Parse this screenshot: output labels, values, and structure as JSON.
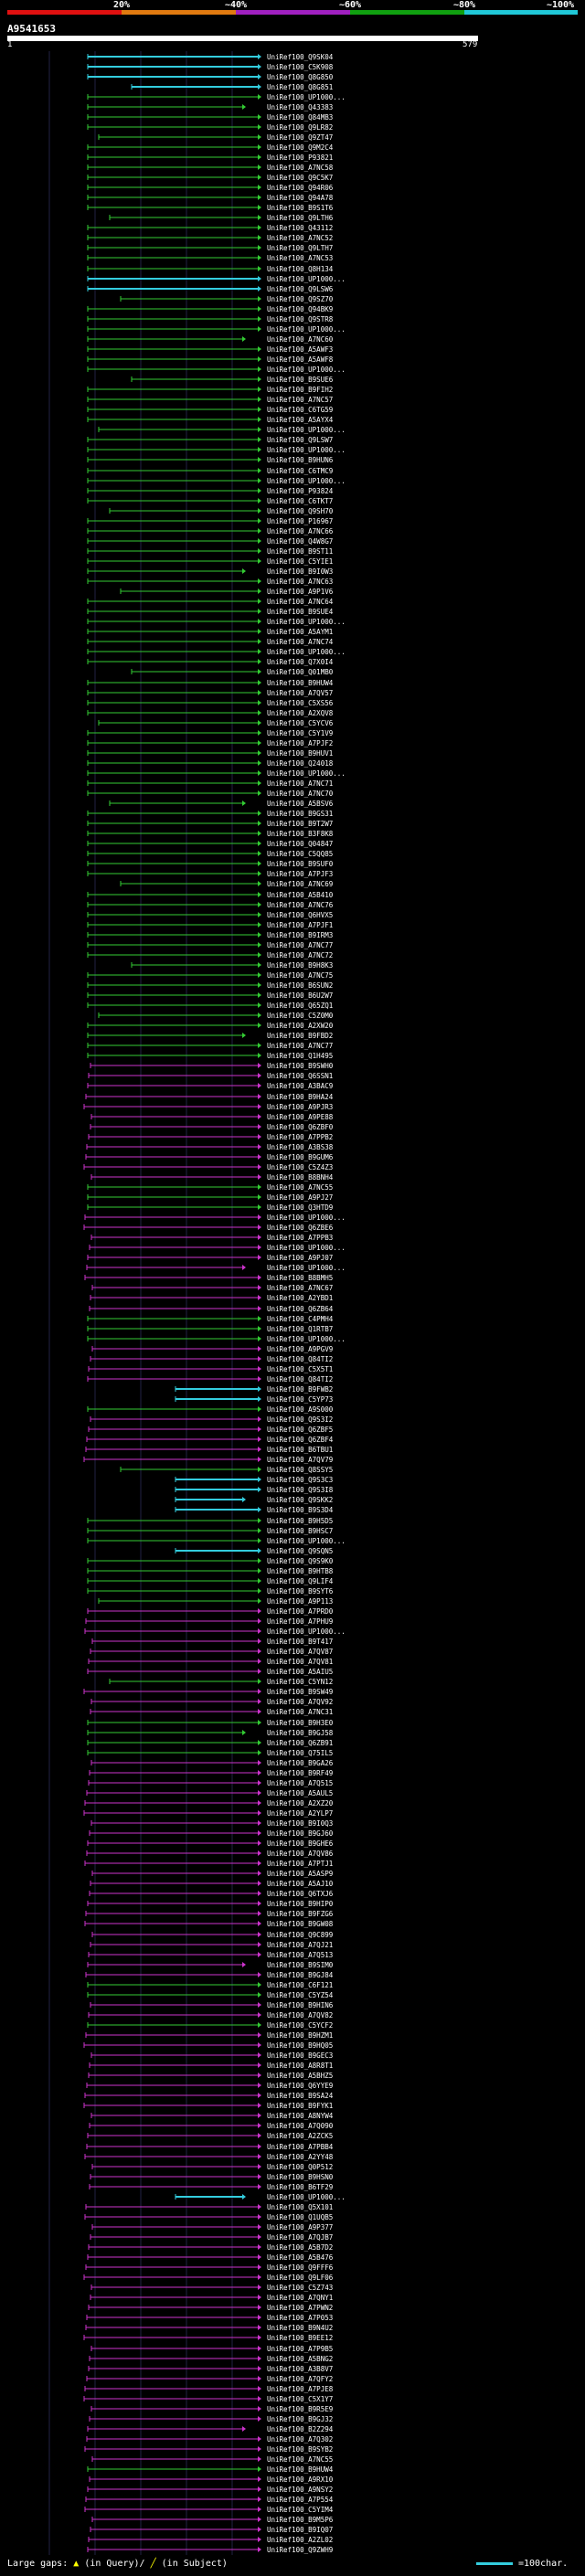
{
  "identity_scale": {
    "labels": [
      "20%",
      "~40%",
      "~60%",
      "~80%",
      "~100%"
    ],
    "colors": [
      "#e01010",
      "#e07a10",
      "#a020c0",
      "#10a010",
      "#20c8d8"
    ]
  },
  "query": {
    "accession": "A9541653",
    "start_label": "1",
    "end_label": "579"
  },
  "hit_colors": {
    "green": "#33cc33",
    "magenta": "#cc33cc",
    "cyan": "#33ccdd"
  },
  "hits": [
    {
      "label": "UniRef100_Q9SK04",
      "color": "cyan"
    },
    {
      "label": "UniRef100_C5K908",
      "color": "cyan"
    },
    {
      "label": "UniRef100_Q8G850",
      "color": "cyan"
    },
    {
      "label": "UniRef100_Q8G851",
      "color": "cyan"
    },
    {
      "label": "UniRef100_UP1000...",
      "color": "green"
    },
    {
      "label": "UniRef100_Q43383",
      "color": "green"
    },
    {
      "label": "UniRef100_Q84MB3",
      "color": "green"
    },
    {
      "label": "UniRef100_Q9LR82",
      "color": "green"
    },
    {
      "label": "UniRef100_Q9ZT47",
      "color": "green"
    },
    {
      "label": "UniRef100_Q9M2C4",
      "color": "green"
    },
    {
      "label": "UniRef100_P93821",
      "color": "green"
    },
    {
      "label": "UniRef100_A7NC58",
      "color": "green"
    },
    {
      "label": "UniRef100_Q9C5K7",
      "color": "green"
    },
    {
      "label": "UniRef100_Q94R06",
      "color": "green"
    },
    {
      "label": "UniRef100_Q94A78",
      "color": "green"
    },
    {
      "label": "UniRef100_B9S1T6",
      "color": "green"
    },
    {
      "label": "UniRef100_Q9LTH6",
      "color": "green"
    },
    {
      "label": "UniRef100_Q43112",
      "color": "green"
    },
    {
      "label": "UniRef100_A7NC52",
      "color": "green"
    },
    {
      "label": "UniRef100_Q9LTH7",
      "color": "green"
    },
    {
      "label": "UniRef100_A7NC53",
      "color": "green"
    },
    {
      "label": "UniRef100_Q8H134",
      "color": "green"
    },
    {
      "label": "UniRef100_UP1000...",
      "color": "cyan"
    },
    {
      "label": "UniRef100_Q9LSW6",
      "color": "cyan"
    },
    {
      "label": "UniRef100_Q9SZ70",
      "color": "green"
    },
    {
      "label": "UniRef100_Q94BK9",
      "color": "green"
    },
    {
      "label": "UniRef100_Q9STR8",
      "color": "green"
    },
    {
      "label": "UniRef100_UP1000...",
      "color": "green"
    },
    {
      "label": "UniRef100_A7NC60",
      "color": "green"
    },
    {
      "label": "UniRef100_A5AWF3",
      "color": "green"
    },
    {
      "label": "UniRef100_A5AWF8",
      "color": "green"
    },
    {
      "label": "UniRef100_UP1000...",
      "color": "green"
    },
    {
      "label": "UniRef100_B9SUE6",
      "color": "green"
    },
    {
      "label": "UniRef100_B9FIH2",
      "color": "green"
    },
    {
      "label": "UniRef100_A7NC57",
      "color": "green"
    },
    {
      "label": "UniRef100_C6TG59",
      "color": "green"
    },
    {
      "label": "UniRef100_A5AYX4",
      "color": "green"
    },
    {
      "label": "UniRef100_UP1000...",
      "color": "green"
    },
    {
      "label": "UniRef100_Q9LSW7",
      "color": "green"
    },
    {
      "label": "UniRef100_UP1000...",
      "color": "green"
    },
    {
      "label": "UniRef100_B9HUN6",
      "color": "green"
    },
    {
      "label": "UniRef100_C6TMC9",
      "color": "green"
    },
    {
      "label": "UniRef100_UP1000...",
      "color": "green"
    },
    {
      "label": "UniRef100_P93824",
      "color": "green"
    },
    {
      "label": "UniRef100_C6TKT7",
      "color": "green"
    },
    {
      "label": "UniRef100_Q9SH70",
      "color": "green"
    },
    {
      "label": "UniRef100_P16967",
      "color": "green"
    },
    {
      "label": "UniRef100_A7NC66",
      "color": "green"
    },
    {
      "label": "UniRef100_Q4W8G7",
      "color": "green"
    },
    {
      "label": "UniRef100_B9ST11",
      "color": "green"
    },
    {
      "label": "UniRef100_C5YIE1",
      "color": "green"
    },
    {
      "label": "UniRef100_B9I0W3",
      "color": "green"
    },
    {
      "label": "UniRef100_A7NC63",
      "color": "green"
    },
    {
      "label": "UniRef100_A9P1V6",
      "color": "green"
    },
    {
      "label": "UniRef100_A7NC64",
      "color": "green"
    },
    {
      "label": "UniRef100_B9SUE4",
      "color": "green"
    },
    {
      "label": "UniRef100_UP1000...",
      "color": "green"
    },
    {
      "label": "UniRef100_A5AYM1",
      "color": "green"
    },
    {
      "label": "UniRef100_A7NC74",
      "color": "green"
    },
    {
      "label": "UniRef100_UP1000...",
      "color": "green"
    },
    {
      "label": "UniRef100_Q7X0I4",
      "color": "green"
    },
    {
      "label": "UniRef100_Q01MB0",
      "color": "green"
    },
    {
      "label": "UniRef100_B9HUW4",
      "color": "green"
    },
    {
      "label": "UniRef100_A7QV57",
      "color": "green"
    },
    {
      "label": "UniRef100_C5XS56",
      "color": "green"
    },
    {
      "label": "UniRef100_A2XQV8",
      "color": "green"
    },
    {
      "label": "UniRef100_C5YCV6",
      "color": "green"
    },
    {
      "label": "UniRef100_C5Y1V9",
      "color": "green"
    },
    {
      "label": "UniRef100_A7PJF2",
      "color": "green"
    },
    {
      "label": "UniRef100_B9HUV1",
      "color": "green"
    },
    {
      "label": "UniRef100_Q24018",
      "color": "green"
    },
    {
      "label": "UniRef100_UP1000...",
      "color": "green"
    },
    {
      "label": "UniRef100_A7NC71",
      "color": "green"
    },
    {
      "label": "UniRef100_A7NC70",
      "color": "green"
    },
    {
      "label": "UniRef100_A5BSV6",
      "color": "green"
    },
    {
      "label": "UniRef100_B9GS31",
      "color": "green"
    },
    {
      "label": "UniRef100_B9T2W7",
      "color": "green"
    },
    {
      "label": "UniRef100_B3F8K8",
      "color": "green"
    },
    {
      "label": "UniRef100_Q04847",
      "color": "green"
    },
    {
      "label": "UniRef100_C5QQ85",
      "color": "green"
    },
    {
      "label": "UniRef100_B9SUF0",
      "color": "green"
    },
    {
      "label": "UniRef100_A7PJF3",
      "color": "green"
    },
    {
      "label": "UniRef100_A7NC69",
      "color": "green"
    },
    {
      "label": "UniRef100_A5B410",
      "color": "green"
    },
    {
      "label": "UniRef100_A7NC76",
      "color": "green"
    },
    {
      "label": "UniRef100_Q6HVX5",
      "color": "green"
    },
    {
      "label": "UniRef100_A7PJF1",
      "color": "green"
    },
    {
      "label": "UniRef100_B9IRM3",
      "color": "green"
    },
    {
      "label": "UniRef100_A7NC77",
      "color": "green"
    },
    {
      "label": "UniRef100_A7NC72",
      "color": "green"
    },
    {
      "label": "UniRef100_B9H8K3",
      "color": "green"
    },
    {
      "label": "UniRef100_A7NC75",
      "color": "green"
    },
    {
      "label": "UniRef100_B6SUN2",
      "color": "green"
    },
    {
      "label": "UniRef100_B6U2W7",
      "color": "green"
    },
    {
      "label": "UniRef100_Q65ZQ1",
      "color": "green"
    },
    {
      "label": "UniRef100_C5Z0M0",
      "color": "green"
    },
    {
      "label": "UniRef100_A2XW20",
      "color": "green"
    },
    {
      "label": "UniRef100_B9FBD2",
      "color": "green"
    },
    {
      "label": "UniRef100_A7NC77",
      "color": "green"
    },
    {
      "label": "UniRef100_Q1H495",
      "color": "green"
    },
    {
      "label": "UniRef100_B9SWH0",
      "color": "magenta"
    },
    {
      "label": "UniRef100_Q6SSN1",
      "color": "magenta"
    },
    {
      "label": "UniRef100_A3BAC9",
      "color": "magenta"
    },
    {
      "label": "UniRef100_B9HA24",
      "color": "magenta"
    },
    {
      "label": "UniRef100_A9PJR3",
      "color": "magenta"
    },
    {
      "label": "UniRef100_A9PE88",
      "color": "magenta"
    },
    {
      "label": "UniRef100_Q6ZBF0",
      "color": "magenta"
    },
    {
      "label": "UniRef100_A7PPB2",
      "color": "magenta"
    },
    {
      "label": "UniRef100_A3BS38",
      "color": "magenta"
    },
    {
      "label": "UniRef100_B9GUM6",
      "color": "magenta"
    },
    {
      "label": "UniRef100_C5Z4Z3",
      "color": "magenta"
    },
    {
      "label": "UniRef100_B8BNH4",
      "color": "magenta"
    },
    {
      "label": "UniRef100_A7NC55",
      "color": "green"
    },
    {
      "label": "UniRef100_A9PJ27",
      "color": "green"
    },
    {
      "label": "UniRef100_Q3HTD9",
      "color": "green"
    },
    {
      "label": "UniRef100_UP1000...",
      "color": "magenta"
    },
    {
      "label": "UniRef100_Q6ZBE6",
      "color": "magenta"
    },
    {
      "label": "UniRef100_A7PPB3",
      "color": "magenta"
    },
    {
      "label": "UniRef100_UP1000...",
      "color": "magenta"
    },
    {
      "label": "UniRef100_A9PJ07",
      "color": "magenta"
    },
    {
      "label": "UniRef100_UP1000...",
      "color": "magenta"
    },
    {
      "label": "UniRef100_B8BMH5",
      "color": "magenta"
    },
    {
      "label": "UniRef100_A7NC67",
      "color": "magenta"
    },
    {
      "label": "UniRef100_A2YBD1",
      "color": "magenta"
    },
    {
      "label": "UniRef100_Q6ZB64",
      "color": "magenta"
    },
    {
      "label": "UniRef100_C4PMH4",
      "color": "green"
    },
    {
      "label": "UniRef100_Q1RTB7",
      "color": "green"
    },
    {
      "label": "UniRef100_UP1000...",
      "color": "green"
    },
    {
      "label": "UniRef100_A9PGV9",
      "color": "magenta"
    },
    {
      "label": "UniRef100_Q84TI2",
      "color": "magenta"
    },
    {
      "label": "UniRef100_C5X5T1",
      "color": "magenta"
    },
    {
      "label": "UniRef100_Q84TI2",
      "color": "magenta"
    },
    {
      "label": "UniRef100_B9FWB2",
      "color": "cyan"
    },
    {
      "label": "UniRef100_C5YP73",
      "color": "cyan"
    },
    {
      "label": "UniRef100_A9S000",
      "color": "green"
    },
    {
      "label": "UniRef100_Q9S3I2",
      "color": "magenta"
    },
    {
      "label": "UniRef100_Q6ZBF5",
      "color": "magenta"
    },
    {
      "label": "UniRef100_Q6ZBF4",
      "color": "magenta"
    },
    {
      "label": "UniRef100_B6TBU1",
      "color": "magenta"
    },
    {
      "label": "UniRef100_A7QV79",
      "color": "magenta"
    },
    {
      "label": "UniRef100_Q8SSY5",
      "color": "green"
    },
    {
      "label": "UniRef100_Q9S3C3",
      "color": "cyan"
    },
    {
      "label": "UniRef100_Q9S3I8",
      "color": "cyan"
    },
    {
      "label": "UniRef100_Q9SKK2",
      "color": "cyan"
    },
    {
      "label": "UniRef100_B9S3D4",
      "color": "cyan"
    },
    {
      "label": "UniRef100_B9H5D5",
      "color": "green"
    },
    {
      "label": "UniRef100_B9HSC7",
      "color": "green"
    },
    {
      "label": "UniRef100_UP1000...",
      "color": "green"
    },
    {
      "label": "UniRef100_Q9SQN5",
      "color": "cyan"
    },
    {
      "label": "UniRef100_Q9S9K0",
      "color": "green"
    },
    {
      "label": "UniRef100_B9HTB8",
      "color": "green"
    },
    {
      "label": "UniRef100_Q9LIF4",
      "color": "green"
    },
    {
      "label": "UniRef100_B9SYT6",
      "color": "green"
    },
    {
      "label": "UniRef100_A9P113",
      "color": "green"
    },
    {
      "label": "UniRef100_A7PRD0",
      "color": "magenta"
    },
    {
      "label": "UniRef100_A7PHU9",
      "color": "magenta"
    },
    {
      "label": "UniRef100_UP1000...",
      "color": "magenta"
    },
    {
      "label": "UniRef100_B9T417",
      "color": "magenta"
    },
    {
      "label": "UniRef100_A7QV87",
      "color": "magenta"
    },
    {
      "label": "UniRef100_A7QV81",
      "color": "magenta"
    },
    {
      "label": "UniRef100_A5AIU5",
      "color": "magenta"
    },
    {
      "label": "UniRef100_C5YN12",
      "color": "green"
    },
    {
      "label": "UniRef100_B9SW49",
      "color": "magenta"
    },
    {
      "label": "UniRef100_A7QV92",
      "color": "magenta"
    },
    {
      "label": "UniRef100_A7NC31",
      "color": "magenta"
    },
    {
      "label": "UniRef100_B9H3E0",
      "color": "green"
    },
    {
      "label": "UniRef100_B9GJ58",
      "color": "green"
    },
    {
      "label": "UniRef100_Q6ZB91",
      "color": "green"
    },
    {
      "label": "UniRef100_Q75IL5",
      "color": "green"
    },
    {
      "label": "UniRef100_B9GA26",
      "color": "magenta"
    },
    {
      "label": "UniRef100_B9RF49",
      "color": "magenta"
    },
    {
      "label": "UniRef100_A7Q515",
      "color": "magenta"
    },
    {
      "label": "UniRef100_A5AUL5",
      "color": "magenta"
    },
    {
      "label": "UniRef100_A2XZ20",
      "color": "magenta"
    },
    {
      "label": "UniRef100_A2YLP7",
      "color": "magenta"
    },
    {
      "label": "UniRef100_B9I0Q3",
      "color": "magenta"
    },
    {
      "label": "UniRef100_B9GJ60",
      "color": "magenta"
    },
    {
      "label": "UniRef100_B9GHE6",
      "color": "magenta"
    },
    {
      "label": "UniRef100_A7QV86",
      "color": "magenta"
    },
    {
      "label": "UniRef100_A7PTJ1",
      "color": "magenta"
    },
    {
      "label": "UniRef100_A5ASP9",
      "color": "magenta"
    },
    {
      "label": "UniRef100_A5AJ10",
      "color": "magenta"
    },
    {
      "label": "UniRef100_Q6TXJ6",
      "color": "magenta"
    },
    {
      "label": "UniRef100_B9HIP0",
      "color": "magenta"
    },
    {
      "label": "UniRef100_B9FZG6",
      "color": "magenta"
    },
    {
      "label": "UniRef100_B9GW08",
      "color": "magenta"
    },
    {
      "label": "UniRef100_Q9C899",
      "color": "magenta"
    },
    {
      "label": "UniRef100_A7QJ21",
      "color": "magenta"
    },
    {
      "label": "UniRef100_A7Q513",
      "color": "magenta"
    },
    {
      "label": "UniRef100_B9SIM0",
      "color": "magenta"
    },
    {
      "label": "UniRef100_B9GJ84",
      "color": "magenta"
    },
    {
      "label": "UniRef100_C6F121",
      "color": "green"
    },
    {
      "label": "UniRef100_C5YZ54",
      "color": "green"
    },
    {
      "label": "UniRef100_B9HIN6",
      "color": "magenta"
    },
    {
      "label": "UniRef100_A7QV82",
      "color": "magenta"
    },
    {
      "label": "UniRef100_C5YCF2",
      "color": "green"
    },
    {
      "label": "UniRef100_B9HZM1",
      "color": "magenta"
    },
    {
      "label": "UniRef100_B9HQ05",
      "color": "magenta"
    },
    {
      "label": "UniRef100_B9GEC3",
      "color": "magenta"
    },
    {
      "label": "UniRef100_A8R8T1",
      "color": "magenta"
    },
    {
      "label": "UniRef100_A5BHZ5",
      "color": "magenta"
    },
    {
      "label": "UniRef100_Q6YYE9",
      "color": "magenta"
    },
    {
      "label": "UniRef100_B9SA24",
      "color": "magenta"
    },
    {
      "label": "UniRef100_B9FYK1",
      "color": "magenta"
    },
    {
      "label": "UniRef100_A8NYW4",
      "color": "magenta"
    },
    {
      "label": "UniRef100_A7Q090",
      "color": "magenta"
    },
    {
      "label": "UniRef100_A2ZCK5",
      "color": "magenta"
    },
    {
      "label": "UniRef100_A7PBB4",
      "color": "magenta"
    },
    {
      "label": "UniRef100_A2YY48",
      "color": "magenta"
    },
    {
      "label": "UniRef100_Q0P512",
      "color": "magenta"
    },
    {
      "label": "UniRef100_B9HSN0",
      "color": "magenta"
    },
    {
      "label": "UniRef100_B6TF29",
      "color": "magenta"
    },
    {
      "label": "UniRef100_UP1000...",
      "color": "cyan"
    },
    {
      "label": "UniRef100_Q5X101",
      "color": "magenta"
    },
    {
      "label": "UniRef100_Q1UQB5",
      "color": "magenta"
    },
    {
      "label": "UniRef100_A9P377",
      "color": "magenta"
    },
    {
      "label": "UniRef100_A7QJB7",
      "color": "magenta"
    },
    {
      "label": "UniRef100_A5B7D2",
      "color": "magenta"
    },
    {
      "label": "UniRef100_A5B476",
      "color": "magenta"
    },
    {
      "label": "UniRef100_Q9FFF6",
      "color": "magenta"
    },
    {
      "label": "UniRef100_Q9LF06",
      "color": "magenta"
    },
    {
      "label": "UniRef100_C5Z743",
      "color": "magenta"
    },
    {
      "label": "UniRef100_A7QNY1",
      "color": "magenta"
    },
    {
      "label": "UniRef100_A7PWN2",
      "color": "magenta"
    },
    {
      "label": "UniRef100_A7P053",
      "color": "magenta"
    },
    {
      "label": "UniRef100_B9N4U2",
      "color": "magenta"
    },
    {
      "label": "UniRef100_B9EE12",
      "color": "magenta"
    },
    {
      "label": "UniRef100_A7P9B5",
      "color": "magenta"
    },
    {
      "label": "UniRef100_A5BNG2",
      "color": "magenta"
    },
    {
      "label": "UniRef100_A3B8V7",
      "color": "magenta"
    },
    {
      "label": "UniRef100_A7QFY2",
      "color": "magenta"
    },
    {
      "label": "UniRef100_A7PJE8",
      "color": "magenta"
    },
    {
      "label": "UniRef100_C5X1Y7",
      "color": "magenta"
    },
    {
      "label": "UniRef100_B9R5E9",
      "color": "magenta"
    },
    {
      "label": "UniRef100_B9GJ32",
      "color": "magenta"
    },
    {
      "label": "UniRef100_B2Z294",
      "color": "magenta"
    },
    {
      "label": "UniRef100_A7Q302",
      "color": "magenta"
    },
    {
      "label": "UniRef100_B9SYB2",
      "color": "magenta"
    },
    {
      "label": "UniRef100_A7NC55",
      "color": "magenta"
    },
    {
      "label": "UniRef100_B9HUW4",
      "color": "green"
    },
    {
      "label": "UniRef100_A9RX10",
      "color": "magenta"
    },
    {
      "label": "UniRef100_A9NSY2",
      "color": "magenta"
    },
    {
      "label": "UniRef100_A7P554",
      "color": "magenta"
    },
    {
      "label": "UniRef100_C5YIM4",
      "color": "magenta"
    },
    {
      "label": "UniRef100_B9M5P6",
      "color": "magenta"
    },
    {
      "label": "UniRef100_B9IQ07",
      "color": "magenta"
    },
    {
      "label": "UniRef100_A2ZL02",
      "color": "magenta"
    },
    {
      "label": "UniRef100_Q9ZWH9",
      "color": "magenta"
    }
  ],
  "legend": {
    "gaps_label": "Large gaps:",
    "gap_query_text": "(in Query)/",
    "gap_subject_text": "(in Subject)",
    "scale_text": "=100char."
  }
}
